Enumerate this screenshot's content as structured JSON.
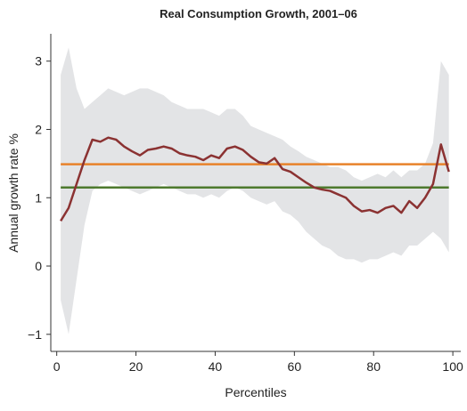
{
  "chart_data": {
    "type": "line",
    "title": "Real Consumption Growth, 2001–06",
    "xlabel": "Percentiles",
    "ylabel": "Annual growth rate %",
    "x": [
      1,
      3,
      5,
      7,
      9,
      11,
      13,
      15,
      17,
      19,
      21,
      23,
      25,
      27,
      29,
      31,
      33,
      35,
      37,
      39,
      41,
      43,
      45,
      47,
      49,
      51,
      53,
      55,
      57,
      59,
      61,
      63,
      65,
      67,
      69,
      71,
      73,
      75,
      77,
      79,
      81,
      83,
      85,
      87,
      89,
      91,
      93,
      95,
      97,
      99
    ],
    "series": [
      {
        "color": "#8b3232",
        "values": [
          0.66,
          0.85,
          1.2,
          1.55,
          1.85,
          1.82,
          1.88,
          1.85,
          1.75,
          1.68,
          1.62,
          1.7,
          1.72,
          1.75,
          1.72,
          1.65,
          1.62,
          1.6,
          1.55,
          1.62,
          1.58,
          1.72,
          1.75,
          1.7,
          1.6,
          1.52,
          1.5,
          1.58,
          1.42,
          1.38,
          1.3,
          1.22,
          1.15,
          1.12,
          1.1,
          1.05,
          1.0,
          0.88,
          0.8,
          0.82,
          0.78,
          0.85,
          0.88,
          0.78,
          0.95,
          0.85,
          1.0,
          1.2,
          1.78,
          1.38
        ]
      }
    ],
    "band": {
      "color": "#e3e4e6",
      "upper": [
        2.8,
        3.2,
        2.6,
        2.3,
        2.4,
        2.5,
        2.6,
        2.55,
        2.5,
        2.55,
        2.6,
        2.6,
        2.55,
        2.5,
        2.4,
        2.35,
        2.3,
        2.3,
        2.3,
        2.25,
        2.2,
        2.3,
        2.3,
        2.2,
        2.05,
        2.0,
        1.95,
        1.9,
        1.85,
        1.75,
        1.68,
        1.6,
        1.55,
        1.5,
        1.45,
        1.45,
        1.4,
        1.3,
        1.25,
        1.3,
        1.35,
        1.3,
        1.4,
        1.3,
        1.4,
        1.4,
        1.5,
        1.8,
        3.0,
        2.8
      ],
      "lower": [
        -0.5,
        -1.0,
        -0.2,
        0.6,
        1.1,
        1.2,
        1.25,
        1.2,
        1.15,
        1.1,
        1.05,
        1.1,
        1.15,
        1.2,
        1.15,
        1.1,
        1.05,
        1.05,
        1.0,
        1.05,
        1.0,
        1.1,
        1.15,
        1.1,
        1.0,
        0.95,
        0.9,
        0.95,
        0.8,
        0.75,
        0.65,
        0.5,
        0.4,
        0.3,
        0.25,
        0.15,
        0.1,
        0.1,
        0.05,
        0.1,
        0.1,
        0.15,
        0.2,
        0.15,
        0.3,
        0.3,
        0.4,
        0.5,
        0.4,
        0.2
      ]
    },
    "reference_lines": [
      {
        "value": 1.49,
        "color": "#e8822a"
      },
      {
        "value": 1.15,
        "color": "#4e7a2e"
      }
    ],
    "xlim": [
      -1.5,
      102
    ],
    "ylim": [
      -1.25,
      3.4
    ],
    "xticks": [
      0,
      20,
      40,
      60,
      80,
      100
    ],
    "yticks": [
      {
        "value": -1,
        "label": "−1"
      },
      0,
      1,
      2,
      3
    ]
  }
}
